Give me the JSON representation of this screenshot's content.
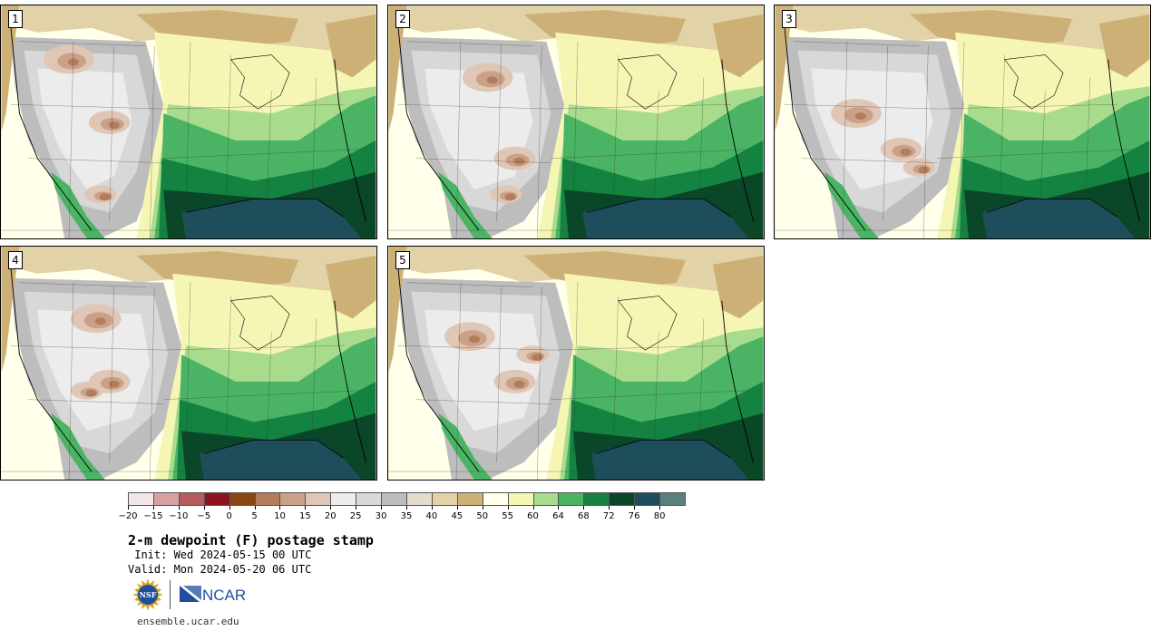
{
  "panels": [
    {
      "label": "1"
    },
    {
      "label": "2"
    },
    {
      "label": "3"
    },
    {
      "label": "4"
    },
    {
      "label": "5"
    }
  ],
  "colorbar": {
    "colors": [
      "#f2e6e6",
      "#d8a0a0",
      "#b45c5c",
      "#8c1420",
      "#8c4614",
      "#b47c5a",
      "#c9a088",
      "#e0c6b4",
      "#ececec",
      "#d8d8d8",
      "#bdbdbd",
      "#e4dccc",
      "#e2d2a8",
      "#cdb076",
      "#ffffea",
      "#f6f6b4",
      "#a8dc8c",
      "#4ab464",
      "#148240",
      "#0a4628",
      "#1e4e5c",
      "#5a807e"
    ],
    "tick_labels": [
      "−20",
      "−15",
      "−10",
      "−5",
      "0",
      "5",
      "10",
      "15",
      "20",
      "25",
      "30",
      "35",
      "40",
      "45",
      "50",
      "55",
      "60",
      "64",
      "68",
      "72",
      "76",
      "80"
    ]
  },
  "title": "2-m dewpoint (F) postage stamp",
  "init": " Init: Wed 2024-05-15 00 UTC",
  "valid": "Valid: Mon 2024-05-20 06 UTC",
  "logos": {
    "nsf": "NSF",
    "ncar": "NCAR"
  },
  "site": "ensemble.ucar.edu"
}
